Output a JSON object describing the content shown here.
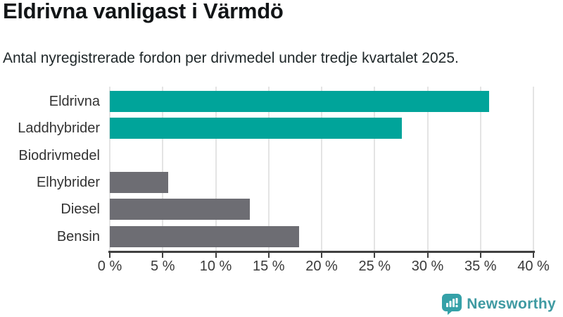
{
  "title": "Eldrivna vanligast i Värmdö",
  "subtitle": "Antal nyregistrerade fordon per drivmedel under tredje kvartalet 2025.",
  "chart_data": {
    "type": "bar",
    "orientation": "horizontal",
    "title": "Eldrivna vanligast i Värmdö",
    "subtitle": "Antal nyregistrerade fordon per drivmedel under tredje kvartalet 2025.",
    "categories": [
      "Eldrivna",
      "Laddhybrider",
      "Biodrivmedel",
      "Elhybrider",
      "Diesel",
      "Bensin"
    ],
    "values": [
      35.8,
      27.6,
      0,
      5.5,
      13.2,
      17.9
    ],
    "unit": "%",
    "xlim": [
      0,
      40
    ],
    "xticks": [
      "0 %",
      "5 %",
      "10 %",
      "15 %",
      "20 %",
      "25 %",
      "30 %",
      "35 %",
      "40 %"
    ],
    "xtick_values": [
      0,
      5,
      10,
      15,
      20,
      25,
      30,
      35,
      40
    ],
    "grid": true,
    "legend": "none",
    "bar_colors": [
      "#00a49a",
      "#00a49a",
      "#6d6d73",
      "#6d6d73",
      "#6d6d73",
      "#6d6d73"
    ]
  },
  "colors": {
    "accent_teal": "#00a49a",
    "neutral_gray": "#6d6d73",
    "gridline": "#e4e4e4",
    "axis": "#404040",
    "logo": "#3f9aa2"
  },
  "branding": {
    "logo_text": "Newsworthy",
    "logo_icon": "newsworthy-speech-bubble-barchart-icon"
  }
}
